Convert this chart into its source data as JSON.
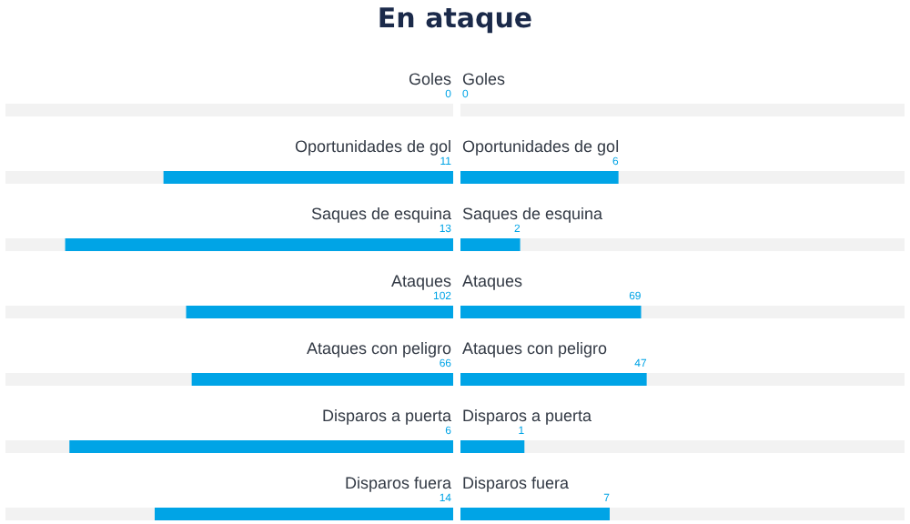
{
  "chart_data": {
    "type": "other",
    "title": "En ataque",
    "categories": [
      "Goles",
      "Oportunidades de gol",
      "Saques de esquina",
      "Ataques",
      "Ataques con peligro",
      "Disparos a puerta",
      "Disparos fuera"
    ],
    "series": [
      {
        "color": "#00a4e6",
        "values": [
          0,
          11,
          13,
          102,
          66,
          6,
          14
        ]
      },
      {
        "color": "#00a4e6",
        "values": [
          0,
          6,
          2,
          69,
          47,
          1,
          7
        ]
      }
    ],
    "data_labels": true
  }
}
